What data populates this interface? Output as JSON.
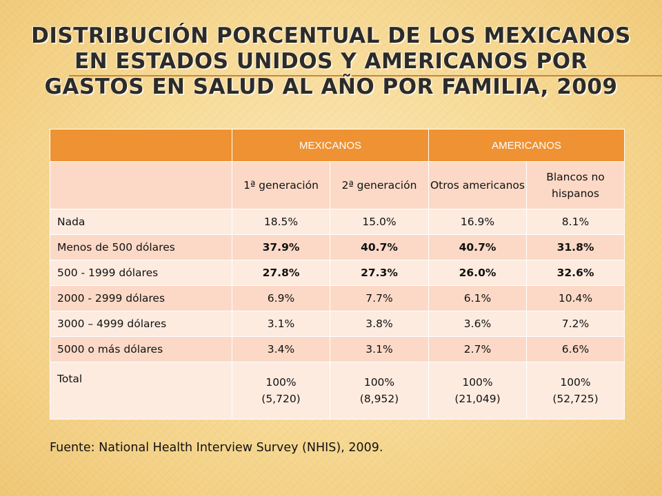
{
  "title": "Distribución porcentual de los mexicanos en Estados Unidos y americanos por gastos en salud al año por familia, 2009",
  "table": {
    "group_headers": [
      "MEXICANOS",
      "AMERICANOS"
    ],
    "sub_headers": [
      "1ª generación",
      "2ª generación",
      "Otros americanos",
      "Blancos no hispanos"
    ],
    "rows": [
      {
        "label": "Nada",
        "values": [
          "18.5%",
          "15.0%",
          "16.9%",
          "8.1%"
        ],
        "bold": false
      },
      {
        "label": "Menos de 500 dólares",
        "values": [
          "37.9%",
          "40.7%",
          "40.7%",
          "31.8%"
        ],
        "bold": true
      },
      {
        "label": "500 - 1999 dólares",
        "values": [
          "27.8%",
          "27.3%",
          "26.0%",
          "32.6%"
        ],
        "bold": true
      },
      {
        "label": "2000 - 2999 dólares",
        "values": [
          "6.9%",
          "7.7%",
          "6.1%",
          "10.4%"
        ],
        "bold": false
      },
      {
        "label": "3000 – 4999 dólares",
        "values": [
          "3.1%",
          "3.8%",
          "3.6%",
          "7.2%"
        ],
        "bold": false
      },
      {
        "label": "5000 o más dólares",
        "values": [
          "3.4%",
          "3.1%",
          "2.7%",
          "6.6%"
        ],
        "bold": false
      }
    ],
    "total": {
      "label": "Total",
      "values": [
        {
          "pct": "100%",
          "n": "(5,720)"
        },
        {
          "pct": "100%",
          "n": "(8,952)"
        },
        {
          "pct": "100%",
          "n": "(21,049)"
        },
        {
          "pct": "100%",
          "n": "(52,725)"
        }
      ]
    }
  },
  "source": "Fuente: National Health Interview Survey (NHIS), 2009.",
  "colors": {
    "header": "#ee9233",
    "row_dark": "#fbd9c6",
    "row_light": "#fdebe0"
  }
}
